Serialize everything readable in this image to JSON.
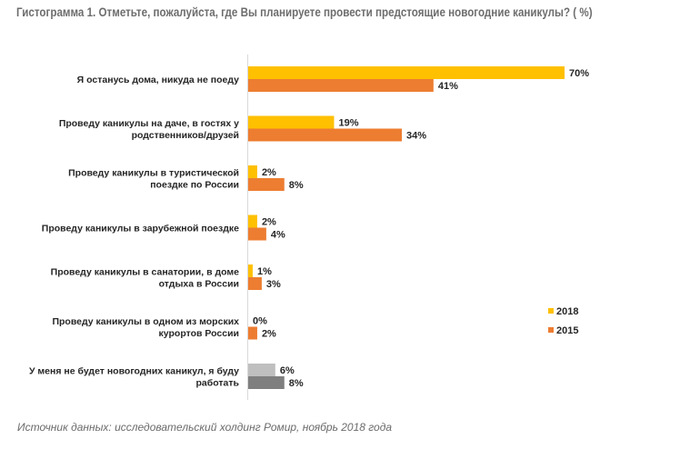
{
  "chart_data": {
    "type": "bar",
    "orientation": "horizontal",
    "title": "Гистограмма 1. Отметьте, пожалуйста, где Вы планируете провести предстоящие новогодние каникулы? ( %)",
    "xlabel": "",
    "ylabel": "",
    "xlim": [
      0,
      70
    ],
    "grid": false,
    "legend_position": "right",
    "categories": [
      [
        "Я останусь дома, никуда не поеду"
      ],
      [
        "Проведу каникулы на даче, в гостях у",
        "родственников/друзей"
      ],
      [
        "Проведу каникулы в туристической",
        "поездке по России"
      ],
      [
        "Проведу каникулы в зарубежной поездке"
      ],
      [
        "Проведу каникулы в санатории, в доме",
        "отдыха в России"
      ],
      [
        "Проведу каникулы в одном из морских",
        "курортов России"
      ],
      [
        "У меня не будет новогодних каникул, я буду",
        "работать"
      ]
    ],
    "series": [
      {
        "name": "2018",
        "color": "#ffc000",
        "last_color": "#bfbfbf",
        "values": [
          70,
          19,
          2,
          2,
          1,
          0,
          6
        ],
        "labels": [
          "70%",
          "19%",
          "2%",
          "2%",
          "1%",
          "0%",
          "6%"
        ]
      },
      {
        "name": "2015",
        "color": "#ed7d31",
        "last_color": "#7f7f7f",
        "values": [
          41,
          34,
          8,
          4,
          3,
          2,
          8
        ],
        "labels": [
          "41%",
          "34%",
          "8%",
          "4%",
          "3%",
          "2%",
          "8%"
        ]
      }
    ],
    "source": "Источник данных: исследовательский холдинг Ромир, ноябрь 2018 года"
  }
}
